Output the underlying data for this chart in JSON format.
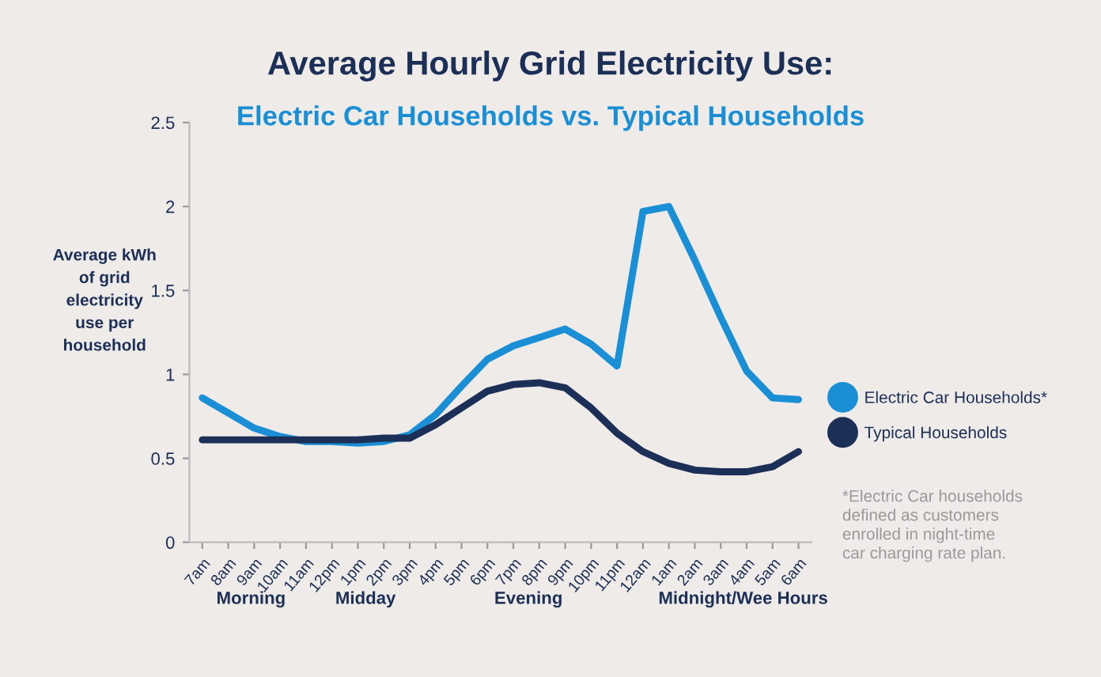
{
  "chart_data": {
    "type": "line",
    "title": "Average Hourly Grid Electricity Use:",
    "subtitle": "Electric Car Households vs. Typical Households",
    "ylabel": "Average kWh\nof grid\nelectricity\nuse per\nhousehold",
    "categories": [
      "7am",
      "8am",
      "9am",
      "10am",
      "11am",
      "12pm",
      "1pm",
      "2pm",
      "3pm",
      "4pm",
      "5pm",
      "6pm",
      "7pm",
      "8pm",
      "9pm",
      "10pm",
      "11pm",
      "12am",
      "1am",
      "2am",
      "3am",
      "4am",
      "5am",
      "6am"
    ],
    "series": [
      {
        "name": "Electric Car Households*",
        "color": "#1a8fd6",
        "values": [
          0.86,
          0.77,
          0.68,
          0.63,
          0.6,
          0.6,
          0.59,
          0.6,
          0.64,
          0.76,
          0.93,
          1.09,
          1.17,
          1.22,
          1.27,
          1.18,
          1.05,
          1.97,
          2.0,
          1.68,
          1.34,
          1.02,
          0.86,
          0.85
        ]
      },
      {
        "name": "Typical Households",
        "color": "#1c2f57",
        "values": [
          0.61,
          0.61,
          0.61,
          0.61,
          0.61,
          0.61,
          0.61,
          0.62,
          0.62,
          0.7,
          0.8,
          0.9,
          0.94,
          0.95,
          0.92,
          0.8,
          0.65,
          0.54,
          0.47,
          0.43,
          0.42,
          0.42,
          0.45,
          0.54
        ]
      }
    ],
    "ylim": [
      0,
      2.5
    ],
    "yticks": [
      0,
      0.5,
      1,
      1.5,
      2,
      2.5
    ],
    "grid": false,
    "legend": "right",
    "marker": "none",
    "line_style": "solid",
    "annotations": [
      "Morning",
      "Midday",
      "Evening",
      "Midnight/Wee Hours",
      "*Electric Car households\ndefined as customers\nenrolled in night-time\ncar charging rate plan."
    ]
  }
}
